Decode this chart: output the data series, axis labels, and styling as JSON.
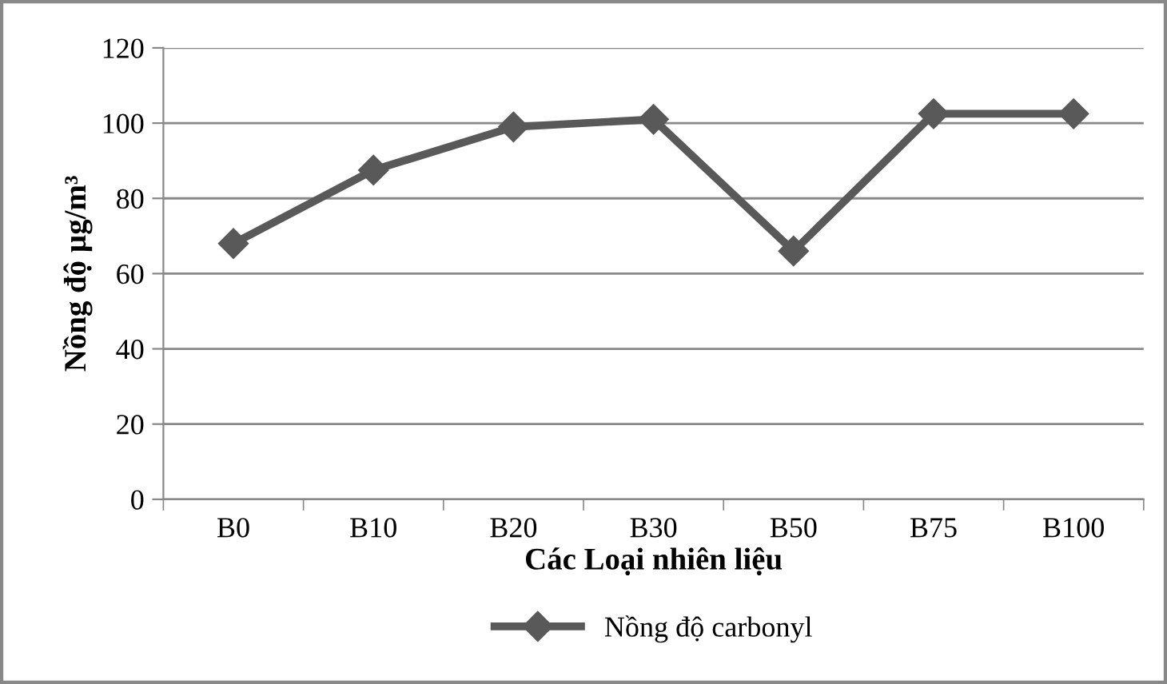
{
  "chart_data": {
    "type": "line",
    "xlabel": "Các Loại nhiên liệu",
    "ylabel": "Nồng độ µg/m³",
    "categories": [
      "B0",
      "B10",
      "B20",
      "B30",
      "B50",
      "B75",
      "B100"
    ],
    "series": [
      {
        "name": "Nồng độ carbonyl",
        "color": "#595959",
        "values": [
          68,
          87.5,
          99,
          101,
          66,
          102.5,
          102.5
        ]
      }
    ],
    "ylim": [
      0,
      120
    ],
    "yticks": [
      0,
      20,
      40,
      60,
      80,
      100,
      120
    ],
    "grid": "y",
    "legend": "bottom",
    "marker": "diamond",
    "line_style": "solid"
  }
}
